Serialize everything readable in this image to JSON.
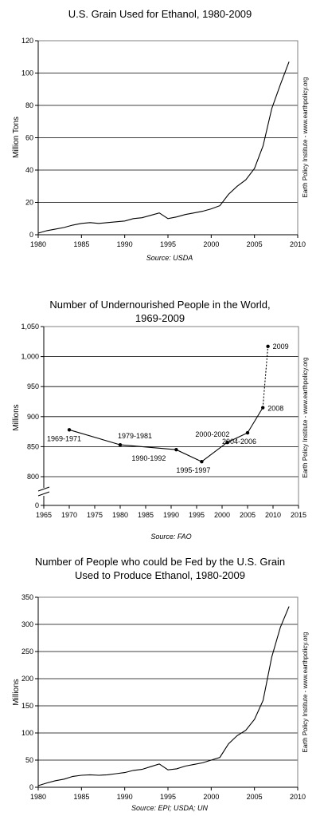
{
  "chart_data": [
    {
      "type": "line",
      "title": "U.S. Grain Used for Ethanol, 1980-2009",
      "ylabel": "Million Tons",
      "xlim": [
        1980,
        2010
      ],
      "ylim": [
        0,
        120
      ],
      "xticks": [
        1980,
        1985,
        1990,
        1995,
        2000,
        2005,
        2010
      ],
      "yticks": [
        0,
        20,
        40,
        60,
        80,
        100,
        120
      ],
      "ytick_labels": [
        "0",
        "20",
        "40",
        "60",
        "80",
        "100",
        "120"
      ],
      "grid": true,
      "source": "Source: USDA",
      "credit": "Earth Policy Institute - www.earthpolicy.org",
      "series": [
        {
          "x": [
            1980,
            1981,
            1982,
            1983,
            1984,
            1985,
            1986,
            1987,
            1988,
            1989,
            1990,
            1991,
            1992,
            1993,
            1994,
            1995,
            1996,
            1997,
            1998,
            1999,
            2000,
            2001,
            2002,
            2003,
            2004,
            2005,
            2006,
            2007,
            2008,
            2009
          ],
          "y": [
            1,
            2.5,
            3.5,
            4.5,
            6,
            7,
            7.5,
            7,
            7.5,
            8,
            8.5,
            10,
            10.5,
            12,
            13.5,
            10,
            11,
            12.5,
            13.5,
            14.5,
            16,
            18,
            25,
            30,
            34,
            41,
            55,
            78,
            93,
            107
          ]
        }
      ]
    },
    {
      "type": "line",
      "title": "Number of Undernourished People in the World, 1969-2009",
      "ylabel": "Millions",
      "xlim": [
        1965,
        2015
      ],
      "ylim_broken": [
        775,
        1050
      ],
      "xticks": [
        1965,
        1970,
        1975,
        1980,
        1985,
        1990,
        1995,
        2000,
        2005,
        2010,
        2015
      ],
      "yticks": [
        800,
        850,
        900,
        950,
        1000,
        1050
      ],
      "ytick_labels": [
        "800",
        "850",
        "900",
        "950",
        "1,000",
        "1,050"
      ],
      "yzero_label": "0",
      "grid": true,
      "source": "Source: FAO",
      "credit": "Earth Policy Institute - www.earthpolicy.org",
      "series": [
        {
          "x": [
            1970,
            1980,
            1991,
            1996,
            2001,
            2005,
            2008,
            2009
          ],
          "y": [
            878,
            853,
            845,
            825,
            857,
            873,
            915,
            1017
          ],
          "labels": [
            "1969-1971",
            "1979-1981",
            "1990-1992",
            "1995-1997",
            "2000-2002",
            "2004-2006",
            "2008",
            "2009"
          ],
          "dashed_last_segment": true
        }
      ]
    },
    {
      "type": "line",
      "title": "Number of People who could be Fed by the U.S. Grain Used to Produce Ethanol, 1980-2009",
      "title_lines": [
        "Number of People who could be Fed by the U.S. Grain",
        "Used to Produce Ethanol, 1980-2009"
      ],
      "ylabel": "Millions",
      "xlim": [
        1980,
        2010
      ],
      "ylim": [
        0,
        350
      ],
      "xticks": [
        1980,
        1985,
        1990,
        1995,
        2000,
        2005,
        2010
      ],
      "yticks": [
        0,
        50,
        100,
        150,
        200,
        250,
        300,
        350
      ],
      "ytick_labels": [
        "0",
        "50",
        "100",
        "150",
        "200",
        "250",
        "300",
        "350"
      ],
      "grid": true,
      "source": "Source: EPI; USDA; UN",
      "credit": "Earth Policy Institute - www.earthpolicy.org",
      "series": [
        {
          "x": [
            1980,
            1981,
            1982,
            1983,
            1984,
            1985,
            1986,
            1987,
            1988,
            1989,
            1990,
            1991,
            1992,
            1993,
            1994,
            1995,
            1996,
            1997,
            1998,
            1999,
            2000,
            2001,
            2002,
            2003,
            2004,
            2005,
            2006,
            2007,
            2008,
            2009
          ],
          "y": [
            3,
            8,
            12,
            15,
            20,
            22,
            23,
            22,
            23,
            25,
            27,
            31,
            33,
            38,
            43,
            32,
            34,
            39,
            42,
            45,
            50,
            55,
            80,
            95,
            105,
            125,
            160,
            240,
            295,
            333
          ]
        }
      ]
    }
  ]
}
